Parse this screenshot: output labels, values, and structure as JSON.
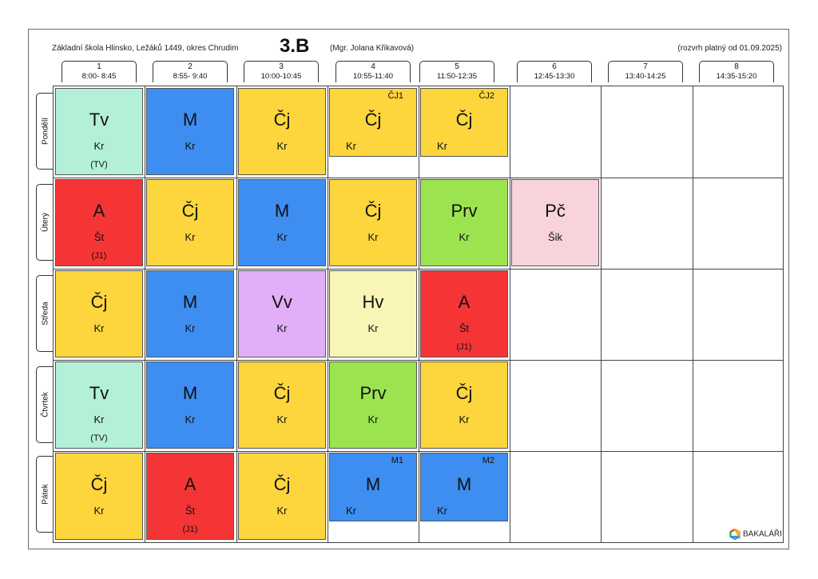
{
  "header": {
    "school": "Základní škola Hlinsko, Ležáků 1449, okres Chrudim",
    "class": "3.B",
    "teacher": "(Mgr. Jolana Křikavová)",
    "validity": "(rozvrh platný od 01.09.2025)"
  },
  "periods": [
    {
      "num": "1",
      "time": "8:00- 8:45"
    },
    {
      "num": "2",
      "time": "8:55- 9:40"
    },
    {
      "num": "3",
      "time": "10:00-10:45"
    },
    {
      "num": "4",
      "time": "10:55-11:40"
    },
    {
      "num": "5",
      "time": "11:50-12:35"
    },
    {
      "num": "6",
      "time": "12:45-13:30"
    },
    {
      "num": "7",
      "time": "13:40-14:25"
    },
    {
      "num": "8",
      "time": "14:35-15:20"
    }
  ],
  "days": [
    "Pondělí",
    "Úterý",
    "Středa",
    "Čtvrtek",
    "Pátek"
  ],
  "colors": {
    "Tv": "#b4f0d8",
    "M": "#3d8ef0",
    "Čj": "#fdd53c",
    "A": "#f53535",
    "Prv": "#9be44f",
    "Pč": "#f8d3dc",
    "Vv": "#e2aef8",
    "Hv": "#f8f5b6"
  },
  "lessons": [
    {
      "day": 0,
      "period": 0,
      "subject": "Tv",
      "teacher": "Kr",
      "room": "(TV)"
    },
    {
      "day": 0,
      "period": 1,
      "subject": "M",
      "teacher": "Kr",
      "room": ""
    },
    {
      "day": 0,
      "period": 2,
      "subject": "Čj",
      "teacher": "Kr",
      "room": ""
    },
    {
      "day": 0,
      "period": 3,
      "subject": "Čj",
      "teacher": "Kr",
      "group": "ČJ1"
    },
    {
      "day": 0,
      "period": 4,
      "subject": "Čj",
      "teacher": "Kr",
      "group": "ČJ2"
    },
    {
      "day": 1,
      "period": 0,
      "subject": "A",
      "teacher": "Št",
      "room": "(J1)"
    },
    {
      "day": 1,
      "period": 1,
      "subject": "Čj",
      "teacher": "Kr",
      "room": ""
    },
    {
      "day": 1,
      "period": 2,
      "subject": "M",
      "teacher": "Kr",
      "room": ""
    },
    {
      "day": 1,
      "period": 3,
      "subject": "Čj",
      "teacher": "Kr",
      "room": ""
    },
    {
      "day": 1,
      "period": 4,
      "subject": "Prv",
      "teacher": "Kr",
      "room": ""
    },
    {
      "day": 1,
      "period": 5,
      "subject": "Pč",
      "teacher": "Šik",
      "room": ""
    },
    {
      "day": 2,
      "period": 0,
      "subject": "Čj",
      "teacher": "Kr",
      "room": ""
    },
    {
      "day": 2,
      "period": 1,
      "subject": "M",
      "teacher": "Kr",
      "room": ""
    },
    {
      "day": 2,
      "period": 2,
      "subject": "Vv",
      "teacher": "Kr",
      "room": ""
    },
    {
      "day": 2,
      "period": 3,
      "subject": "Hv",
      "teacher": "Kr",
      "room": ""
    },
    {
      "day": 2,
      "period": 4,
      "subject": "A",
      "teacher": "Št",
      "room": "(J1)"
    },
    {
      "day": 3,
      "period": 0,
      "subject": "Tv",
      "teacher": "Kr",
      "room": "(TV)"
    },
    {
      "day": 3,
      "period": 1,
      "subject": "M",
      "teacher": "Kr",
      "room": ""
    },
    {
      "day": 3,
      "period": 2,
      "subject": "Čj",
      "teacher": "Kr",
      "room": ""
    },
    {
      "day": 3,
      "period": 3,
      "subject": "Prv",
      "teacher": "Kr",
      "room": ""
    },
    {
      "day": 3,
      "period": 4,
      "subject": "Čj",
      "teacher": "Kr",
      "room": ""
    },
    {
      "day": 4,
      "period": 0,
      "subject": "Čj",
      "teacher": "Kr",
      "room": ""
    },
    {
      "day": 4,
      "period": 1,
      "subject": "A",
      "teacher": "Št",
      "room": "(J1)"
    },
    {
      "day": 4,
      "period": 2,
      "subject": "Čj",
      "teacher": "Kr",
      "room": ""
    },
    {
      "day": 4,
      "period": 3,
      "subject": "M",
      "teacher": "Kr",
      "group": "M1"
    },
    {
      "day": 4,
      "period": 4,
      "subject": "M",
      "teacher": "Kr",
      "group": "M2"
    }
  ],
  "footer": {
    "brand": "BAKALÁŘI",
    "brand_icon": "bakalari-logo-icon"
  }
}
